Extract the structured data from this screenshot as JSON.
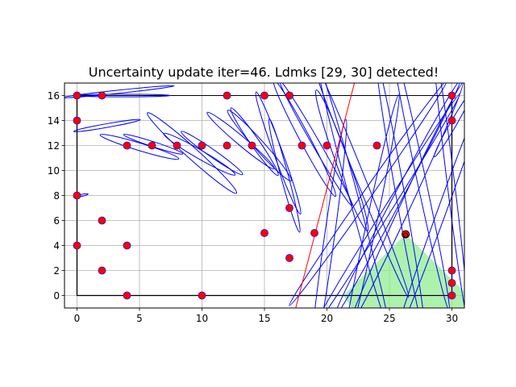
{
  "chart_data": {
    "type": "scatter",
    "title": "Uncertainty update iter=46. Ldmks [29, 30] detected!",
    "xlabel": "",
    "ylabel": "",
    "xlim": [
      -1,
      31
    ],
    "ylim": [
      -1,
      17
    ],
    "grid": true,
    "xticks": [
      0,
      5,
      10,
      15,
      20,
      25,
      30
    ],
    "yticks": [
      0,
      2,
      4,
      6,
      8,
      10,
      12,
      14,
      16
    ],
    "colors": {
      "landmark": "#ff0000",
      "landmark_edge": "#0000ff",
      "ellipse": "#0000ff",
      "heading": "#ff0000",
      "fov": "#90ee90",
      "path": "#b0b0b0",
      "boundary": "#000000",
      "robot": "#000000"
    },
    "series": [
      {
        "x": [
          0,
          2,
          0,
          4,
          6,
          8,
          10,
          12,
          14,
          17,
          18,
          20,
          24,
          0,
          2,
          4,
          0,
          2,
          4,
          10,
          12,
          15,
          17,
          15,
          17,
          17,
          19,
          30,
          30,
          30,
          30,
          30
        ],
        "y": [
          16,
          16,
          14,
          12,
          12,
          12,
          12,
          12,
          12,
          16,
          12,
          12,
          12,
          8,
          6,
          4,
          4,
          2,
          0,
          0,
          16,
          16,
          7,
          5,
          3,
          16,
          5,
          16,
          14,
          2,
          1,
          0
        ]
      }
    ],
    "boundary": [
      [
        0,
        16
      ],
      [
        30,
        16
      ],
      [
        30,
        0
      ],
      [
        0,
        0
      ],
      [
        0,
        16
      ]
    ],
    "path": [
      [
        0,
        16
      ],
      [
        0,
        0
      ],
      [
        30,
        0
      ],
      [
        30,
        16
      ]
    ],
    "robot": {
      "x": 26.3,
      "y": 4.9
    },
    "heading_line": [
      [
        17.5,
        -1
      ],
      [
        22.2,
        17
      ]
    ],
    "fov": [
      [
        21.3,
        0
      ],
      [
        26.3,
        4.9
      ],
      [
        31,
        0.3
      ],
      [
        31,
        -1
      ],
      [
        22,
        -1
      ]
    ],
    "ellipses": [
      {
        "cx": 3.3,
        "cy": 16.3,
        "rx": 4.5,
        "ry": 0.12,
        "angle": 6
      },
      {
        "cx": 3.7,
        "cy": 16.0,
        "rx": 3.8,
        "ry": 0.1,
        "angle": 0
      },
      {
        "cx": 2.4,
        "cy": 13.6,
        "rx": 2.7,
        "ry": 0.15,
        "angle": 10
      },
      {
        "cx": 0.3,
        "cy": 8.0,
        "rx": 0.6,
        "ry": 0.08,
        "angle": 12
      },
      {
        "cx": 5.0,
        "cy": 11.9,
        "rx": 3.3,
        "ry": 0.3,
        "angle": -17
      },
      {
        "cx": 6.1,
        "cy": 12.1,
        "rx": 2.5,
        "ry": 0.2,
        "angle": -18
      },
      {
        "cx": 9.8,
        "cy": 11.3,
        "rx": 3.3,
        "ry": 0.35,
        "angle": -30
      },
      {
        "cx": 9.2,
        "cy": 11.4,
        "rx": 4.8,
        "ry": 0.45,
        "angle": -42
      },
      {
        "cx": 10.8,
        "cy": 11.4,
        "rx": 3.0,
        "ry": 0.3,
        "angle": -35
      },
      {
        "cx": 13.1,
        "cy": 12.4,
        "rx": 3.5,
        "ry": 0.35,
        "angle": -40
      },
      {
        "cx": 14.6,
        "cy": 12.0,
        "rx": 3.8,
        "ry": 0.4,
        "angle": -48
      },
      {
        "cx": 14.2,
        "cy": 12.3,
        "rx": 3.3,
        "ry": 0.35,
        "angle": -55
      },
      {
        "cx": 16.1,
        "cy": 11.4,
        "rx": 5.2,
        "ry": 0.35,
        "angle": -70
      },
      {
        "cx": 16.6,
        "cy": 9.6,
        "rx": 4.7,
        "ry": 0.3,
        "angle": -75
      },
      {
        "cx": 18.2,
        "cy": 12.6,
        "rx": 5.3,
        "ry": 0.4,
        "angle": -62
      },
      {
        "cx": 19.1,
        "cy": 12.2,
        "rx": 5.8,
        "ry": 0.3,
        "angle": -60
      },
      {
        "cx": 21.2,
        "cy": 10.8,
        "rx": 6.0,
        "ry": 0.5,
        "angle": -70
      },
      {
        "cx": 22.6,
        "cy": 9.6,
        "rx": 10.5,
        "ry": 0.35,
        "angle": -68
      },
      {
        "cx": 22.1,
        "cy": 8.0,
        "rx": 11.0,
        "ry": 0.35,
        "angle": -75
      },
      {
        "cx": 20.1,
        "cy": 4.0,
        "rx": 10.2,
        "ry": 0.4,
        "angle": 82
      },
      {
        "cx": 23.4,
        "cy": 5.0,
        "rx": 11.3,
        "ry": 0.4,
        "angle": 78
      },
      {
        "cx": 23.3,
        "cy": 8.2,
        "rx": 11.0,
        "ry": 0.35,
        "angle": 55
      },
      {
        "cx": 25.6,
        "cy": 7.7,
        "rx": 10.8,
        "ry": 0.35,
        "angle": 62
      },
      {
        "cx": 26.3,
        "cy": 7.2,
        "rx": 10.8,
        "ry": 0.4,
        "angle": 65
      },
      {
        "cx": 24.8,
        "cy": 6.8,
        "rx": 11.0,
        "ry": 0.3,
        "angle": 58
      },
      {
        "cx": 25.9,
        "cy": 7.9,
        "rx": 11.0,
        "ry": 0.35,
        "angle": -80
      },
      {
        "cx": 27.5,
        "cy": 9.5,
        "rx": 11.0,
        "ry": 0.35,
        "angle": -78
      },
      {
        "cx": 29.9,
        "cy": 9.1,
        "rx": 11.0,
        "ry": 0.3,
        "angle": -83
      },
      {
        "cx": 29.4,
        "cy": 7.3,
        "rx": 11.5,
        "ry": 0.35,
        "angle": 70
      },
      {
        "cx": 30.1,
        "cy": 13.7,
        "rx": 3.0,
        "ry": 0.25,
        "angle": 60
      }
    ]
  }
}
